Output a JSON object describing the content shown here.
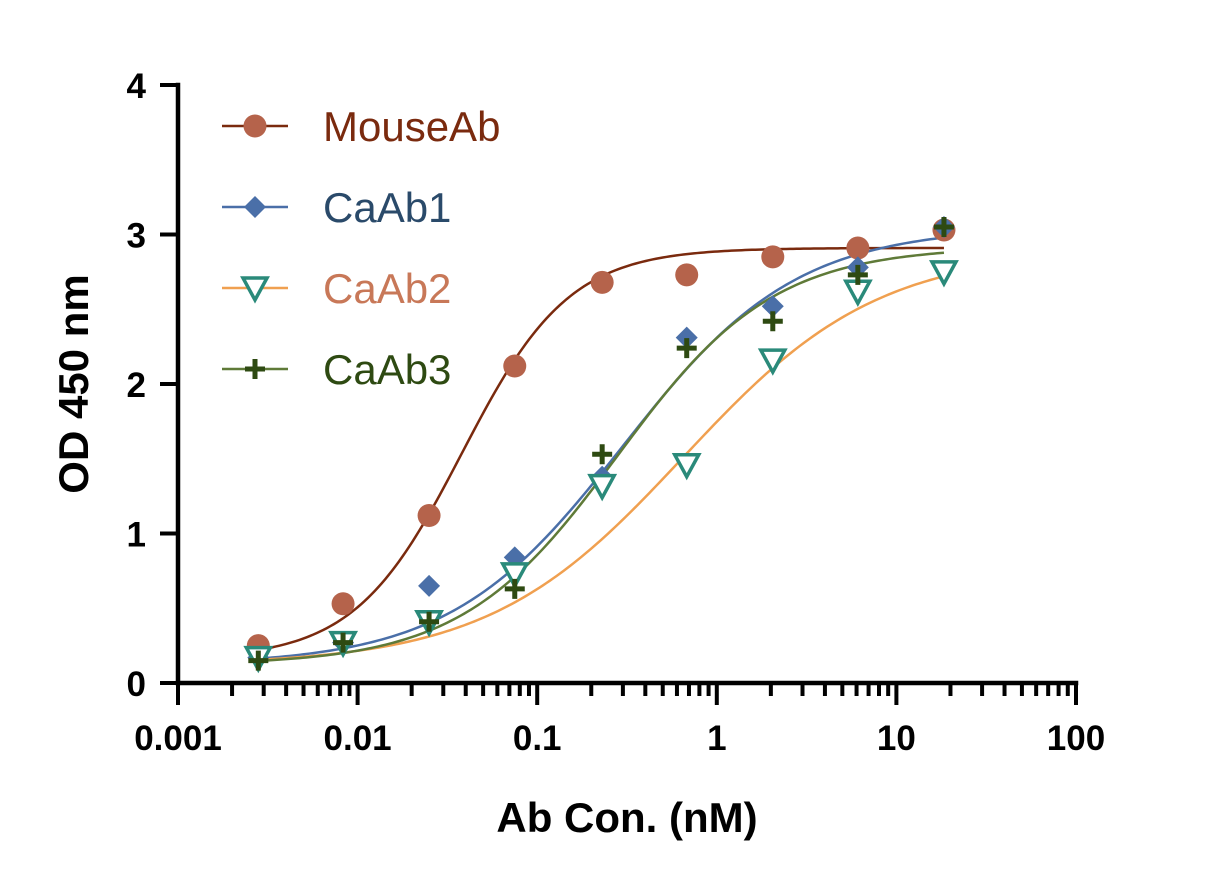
{
  "chart_data": {
    "type": "scatter",
    "xlabel": "Ab Con. (nM)",
    "ylabel": "OD 450 nm",
    "xscale": "log",
    "xlim": [
      0.001,
      100
    ],
    "ylim": [
      0,
      4
    ],
    "x_ticks": [
      0.001,
      0.01,
      0.1,
      1,
      10,
      100
    ],
    "x_tick_labels": [
      "0.001",
      "0.01",
      "0.1",
      "1",
      "10",
      "100"
    ],
    "y_ticks": [
      0,
      1,
      2,
      3,
      4
    ],
    "y_tick_labels": [
      "0",
      "1",
      "2",
      "3",
      "4"
    ],
    "grid": false,
    "legend_position": "top-left",
    "x": [
      0.0028,
      0.0083,
      0.025,
      0.075,
      0.23,
      0.68,
      2.05,
      6.1,
      18.4
    ],
    "series": [
      {
        "name": "MouseAb",
        "marker": "circle",
        "marker_color": "#b5634b",
        "line_color": "#7a2a0e",
        "label_color": "#7a2a0e",
        "values": [
          0.25,
          0.53,
          1.12,
          2.12,
          2.68,
          2.73,
          2.85,
          2.91,
          3.03
        ],
        "fit": {
          "bottom": 0.16,
          "top": 2.91,
          "ec50": 0.038,
          "hill": 1.45
        }
      },
      {
        "name": "CaAb1",
        "marker": "diamond",
        "marker_color": "#4a6fa8",
        "line_color": "#4a6fa8",
        "label_color": "#2a4a6a",
        "values": [
          0.17,
          0.27,
          0.65,
          0.84,
          1.38,
          2.31,
          2.52,
          2.78,
          3.05
        ],
        "fit": {
          "bottom": 0.12,
          "top": 3.05,
          "ec50": 0.3,
          "hill": 0.9
        }
      },
      {
        "name": "CaAb2",
        "marker": "triangle-down-open",
        "marker_color": "#2a8a7a",
        "line_color": "#f0a050",
        "label_color": "#c87858",
        "values": [
          0.17,
          0.27,
          0.41,
          0.73,
          1.32,
          1.46,
          2.16,
          2.62,
          2.75
        ],
        "fit": {
          "bottom": 0.12,
          "top": 2.9,
          "ec50": 0.65,
          "hill": 0.8
        }
      },
      {
        "name": "CaAb3",
        "marker": "plus",
        "marker_color": "#2e4a12",
        "line_color": "#5f7a38",
        "label_color": "#2e4a12",
        "values": [
          0.15,
          0.27,
          0.41,
          0.63,
          1.53,
          2.24,
          2.42,
          2.73,
          3.05
        ],
        "fit": {
          "bottom": 0.12,
          "top": 2.92,
          "ec50": 0.28,
          "hill": 1.0
        }
      }
    ]
  }
}
